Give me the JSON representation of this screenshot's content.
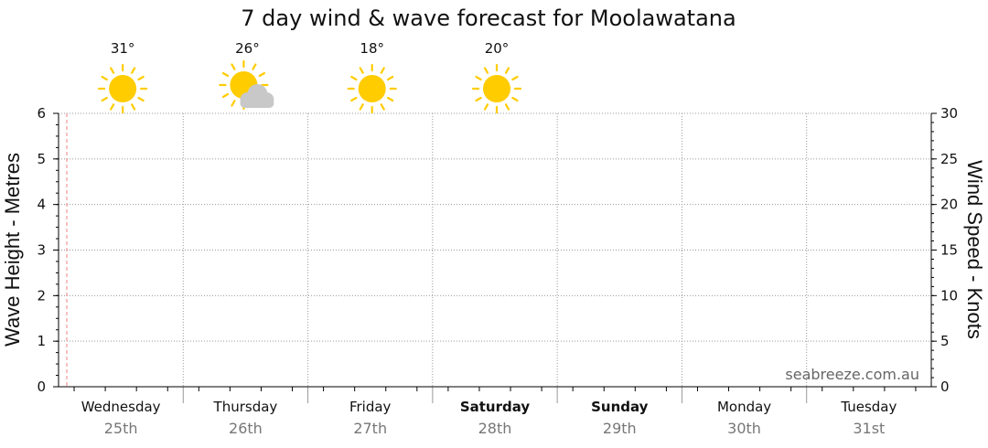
{
  "chart_data": {
    "type": "line",
    "title": "7 day wind & wave forecast for Moolawatana",
    "ylabel_left": "Wave Height - Metres",
    "ylabel_right": "Wind Speed - Knots",
    "ylim_left": [
      0,
      6
    ],
    "ylim_right": [
      0,
      30
    ],
    "yticks_left": [
      "0",
      "1",
      "2",
      "3",
      "4",
      "5",
      "6"
    ],
    "yticks_right": [
      "0",
      "5",
      "10",
      "15",
      "20",
      "25",
      "30"
    ],
    "grid": true,
    "days": [
      {
        "name": "Wednesday",
        "date": "25th",
        "bold": false,
        "temp": "31°",
        "icon": "sun-icon"
      },
      {
        "name": "Thursday",
        "date": "26th",
        "bold": false,
        "temp": "26°",
        "icon": "partly-cloudy-icon"
      },
      {
        "name": "Friday",
        "date": "27th",
        "bold": false,
        "temp": "18°",
        "icon": "sun-icon"
      },
      {
        "name": "Saturday",
        "date": "28th",
        "bold": true,
        "temp": "20°",
        "icon": "sun-icon"
      },
      {
        "name": "Sunday",
        "date": "29th",
        "bold": true,
        "temp": "",
        "icon": ""
      },
      {
        "name": "Monday",
        "date": "30th",
        "bold": false,
        "temp": "",
        "icon": ""
      },
      {
        "name": "Tuesday",
        "date": "31st",
        "bold": false,
        "temp": "",
        "icon": ""
      }
    ],
    "series": [],
    "colors": {
      "grid": "#999999",
      "now_marker": "#f08080",
      "sun": "#ffcc00",
      "cloud": "#c8c8c8",
      "axis": "#000000"
    }
  },
  "watermark": "seabreeze.com.au"
}
